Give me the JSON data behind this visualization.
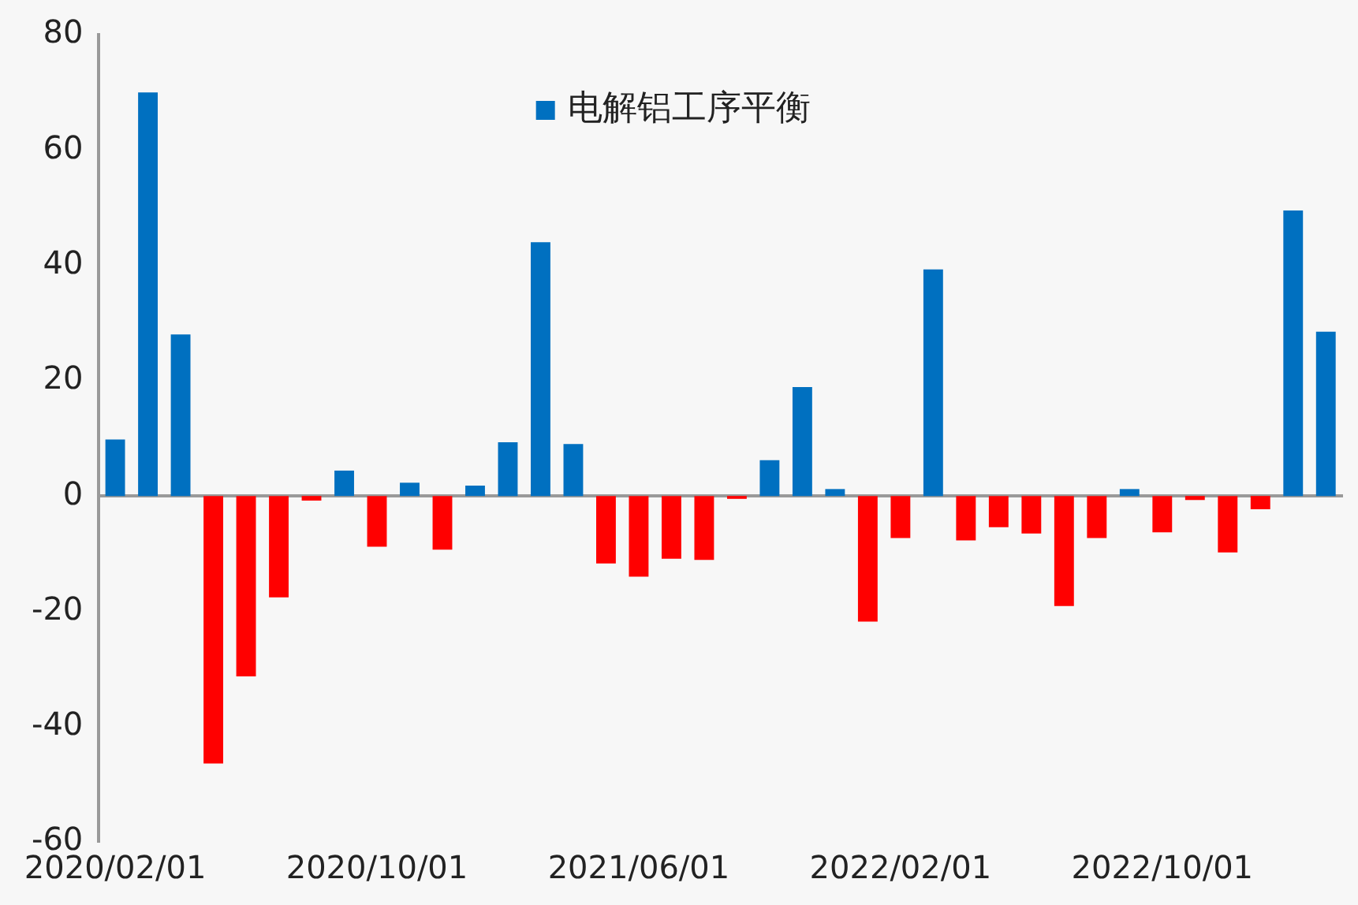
{
  "chart_data": {
    "type": "bar",
    "categories": [
      "2020/02/01",
      null,
      null,
      null,
      null,
      null,
      null,
      null,
      "2020/10/01",
      null,
      null,
      null,
      null,
      null,
      null,
      null,
      "2021/06/01",
      null,
      null,
      null,
      null,
      null,
      null,
      null,
      "2022/02/01",
      null,
      null,
      null,
      null,
      null,
      null,
      null,
      "2022/10/01",
      null,
      null,
      null,
      null,
      null
    ],
    "series": [
      {
        "name": "电解铝工序平衡",
        "color": "#0070c0",
        "colors": [
          "#0070c0",
          "#0070c0",
          "#0070c0",
          "#ff0000",
          "#ff0000",
          "#ff0000",
          "#ff0000",
          "#0070c0",
          "#ff0000",
          "#0070c0",
          "#ff0000",
          "#0070c0",
          "#0070c0",
          "#0070c0",
          "#0070c0",
          "#ff0000",
          "#ff0000",
          "#ff0000",
          "#ff0000",
          "#ff0000",
          "#0070c0",
          "#0070c0",
          "#0070c0",
          "#ff0000",
          "#ff0000",
          "#0070c0",
          "#ff0000",
          "#ff0000",
          "#ff0000",
          "#ff0000",
          "#ff0000",
          "#0070c0",
          "#ff0000",
          "#ff0000",
          "#ff0000",
          "#ff0000",
          "#0070c0",
          "#0070c0"
        ],
        "values": [
          9.8,
          70,
          28,
          -46.4,
          -31.3,
          -17.6,
          -0.8,
          4.4,
          -8.8,
          2.3,
          -9.3,
          1.8,
          9.3,
          44,
          9,
          -11.7,
          -14,
          -10.9,
          -11.1,
          -0.5,
          6.2,
          18.9,
          1.2,
          -21.8,
          -7.3,
          39.3,
          -7.7,
          -5.4,
          -6.5,
          -19.1,
          -7.3,
          1.2,
          -6.3,
          -0.7,
          -9.8,
          -2.3,
          49.5,
          28.5
        ]
      }
    ],
    "ylim": [
      -60,
      80
    ],
    "yticks": [
      -60,
      -40,
      -20,
      0,
      20,
      40,
      60,
      80
    ],
    "legend": "top"
  }
}
